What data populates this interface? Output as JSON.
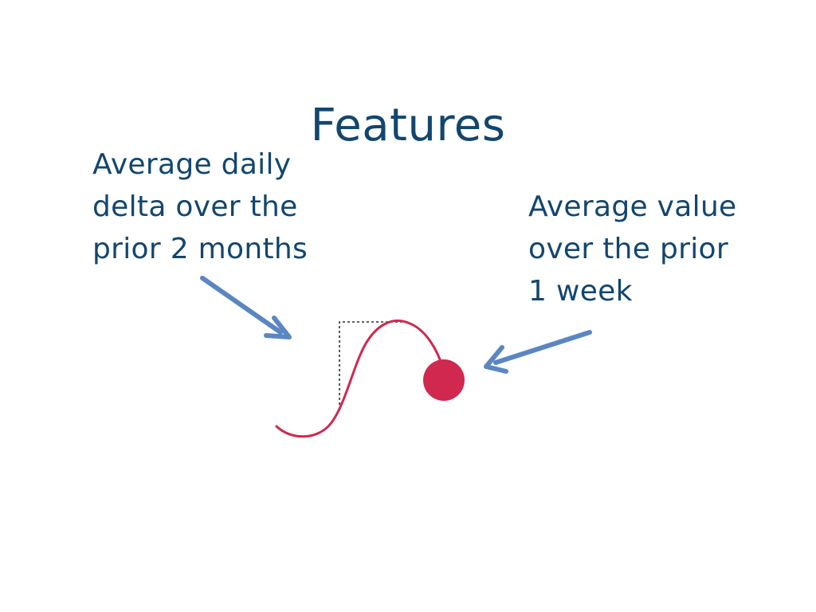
{
  "slide": {
    "title": "Features"
  },
  "callouts": {
    "left": {
      "lines": [
        "Average daily",
        "delta over the",
        "prior 2 months"
      ]
    },
    "right": {
      "lines": [
        "Average value",
        "over the prior",
        "1 week"
      ]
    }
  },
  "colors": {
    "text": "#12466e",
    "curve": "#d0284f",
    "arrow": "#5b86c2",
    "guide": "#000000",
    "background": "#ffffff"
  }
}
